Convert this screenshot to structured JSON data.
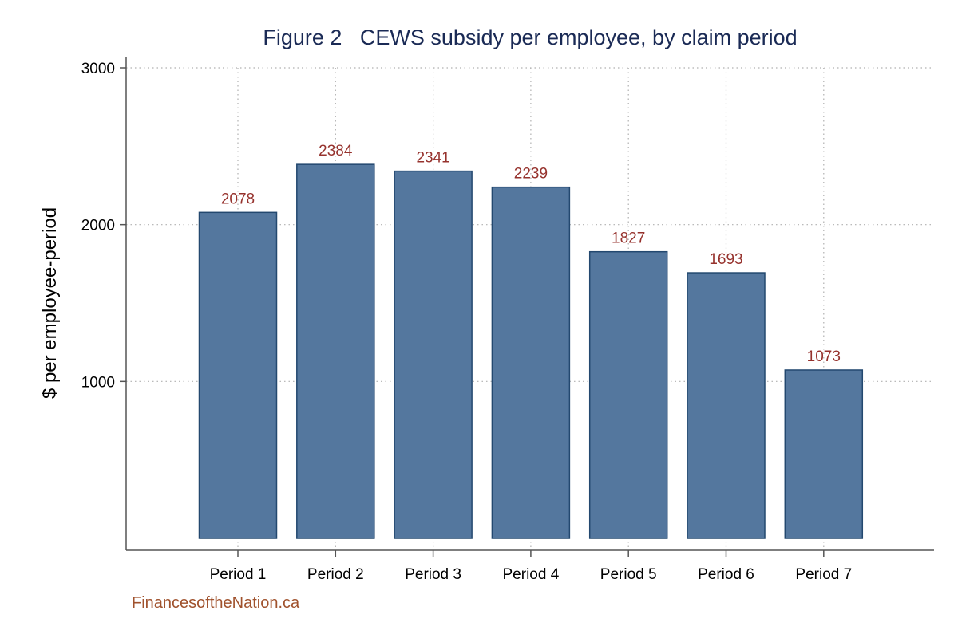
{
  "chart_data": {
    "type": "bar",
    "title": "Figure 2   CEWS subsidy per employee, by claim period",
    "xlabel": "",
    "ylabel": "$ per employee-period",
    "categories": [
      "Period 1",
      "Period 2",
      "Period 3",
      "Period 4",
      "Period 5",
      "Period 6",
      "Period 7"
    ],
    "values": [
      2078,
      2384,
      2341,
      2239,
      1827,
      1693,
      1073
    ],
    "data_labels": [
      "2078",
      "2384",
      "2341",
      "2239",
      "1827",
      "1693",
      "1073"
    ],
    "ylim": [
      0,
      3000
    ],
    "yticks": [
      1000,
      2000,
      3000
    ],
    "ytick_labels": [
      "1000",
      "2000",
      "3000"
    ],
    "grid": true,
    "colors": {
      "bar_fill": "#54779e",
      "bar_stroke": "#23486f",
      "value_label": "#96322d",
      "title": "#1a2a55",
      "source": "#a0522d",
      "grid": "#b0b0b0",
      "axis": "#555555"
    }
  },
  "source_note": "FinancesoftheNation.ca"
}
